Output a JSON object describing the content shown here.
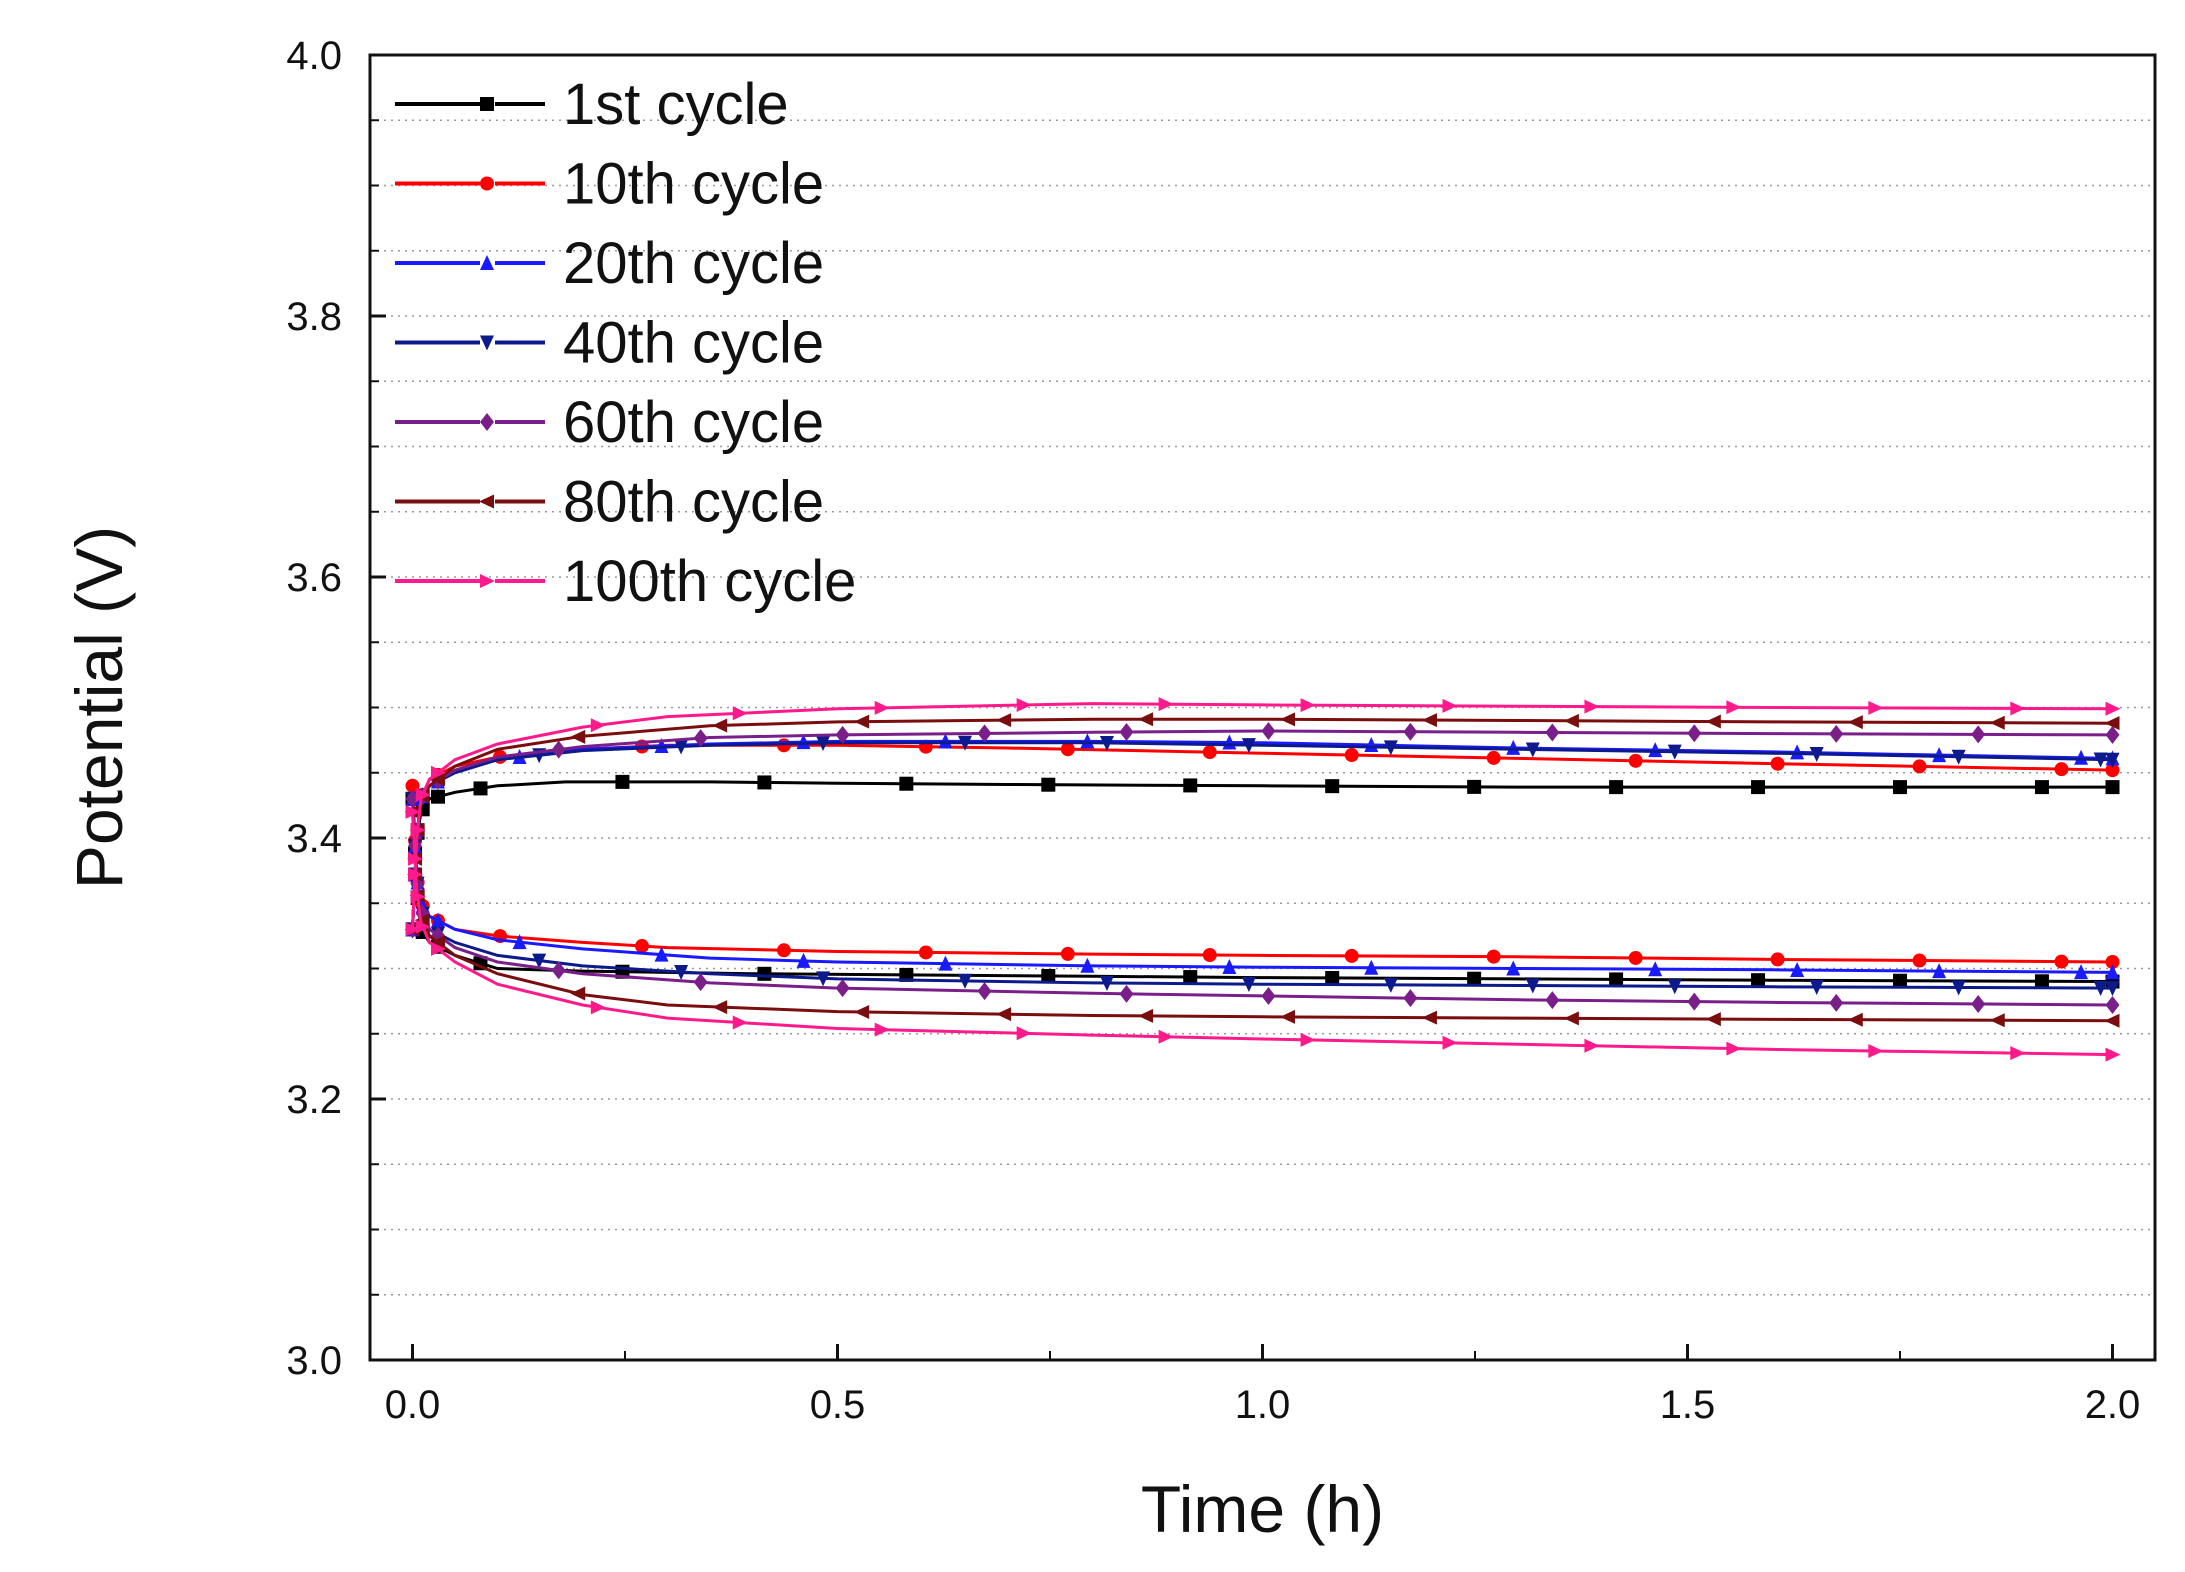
{
  "chart_data": {
    "type": "line",
    "title": "",
    "xlabel": "Time (h)",
    "ylabel": "Potential (V)",
    "xlim": [
      -0.05,
      2.05
    ],
    "ylim": [
      3.0,
      4.0
    ],
    "xticks": [
      "0.0",
      "0.5",
      "1.0",
      "1.5",
      "2.0"
    ],
    "yticks": [
      "3.0",
      "3.2",
      "3.4",
      "3.6",
      "3.8",
      "4.0"
    ],
    "grid": "horizontal-dotted",
    "legend_position": "top-left",
    "series": [
      {
        "name": "1st cycle",
        "color": "#000000",
        "marker": "square",
        "charge": [
          [
            0,
            3.33
          ],
          [
            0.005,
            3.4
          ],
          [
            0.01,
            3.42
          ],
          [
            0.02,
            3.43
          ],
          [
            0.05,
            3.435
          ],
          [
            0.1,
            3.44
          ],
          [
            0.18,
            3.443
          ],
          [
            0.35,
            3.443
          ],
          [
            0.5,
            3.442
          ],
          [
            0.7,
            3.441
          ],
          [
            1.0,
            3.44
          ],
          [
            1.3,
            3.439
          ],
          [
            1.6,
            3.439
          ],
          [
            2.0,
            3.439
          ]
        ],
        "discharge": [
          [
            0,
            3.43
          ],
          [
            0.005,
            3.36
          ],
          [
            0.01,
            3.33
          ],
          [
            0.02,
            3.32
          ],
          [
            0.05,
            3.31
          ],
          [
            0.1,
            3.3
          ],
          [
            0.2,
            3.298
          ],
          [
            0.4,
            3.296
          ],
          [
            0.6,
            3.295
          ],
          [
            0.8,
            3.294
          ],
          [
            1.0,
            3.293
          ],
          [
            1.3,
            3.292
          ],
          [
            1.6,
            3.291
          ],
          [
            2.0,
            3.29
          ]
        ]
      },
      {
        "name": "10th cycle",
        "color": "#ff0000",
        "marker": "circle",
        "charge": [
          [
            0,
            3.33
          ],
          [
            0.005,
            3.4
          ],
          [
            0.01,
            3.43
          ],
          [
            0.02,
            3.445
          ],
          [
            0.05,
            3.455
          ],
          [
            0.1,
            3.462
          ],
          [
            0.2,
            3.468
          ],
          [
            0.3,
            3.471
          ],
          [
            0.5,
            3.471
          ],
          [
            0.7,
            3.469
          ],
          [
            1.0,
            3.465
          ],
          [
            1.3,
            3.461
          ],
          [
            1.6,
            3.457
          ],
          [
            2.0,
            3.452
          ]
        ],
        "discharge": [
          [
            0,
            3.44
          ],
          [
            0.005,
            3.37
          ],
          [
            0.01,
            3.35
          ],
          [
            0.02,
            3.34
          ],
          [
            0.05,
            3.33
          ],
          [
            0.1,
            3.325
          ],
          [
            0.2,
            3.32
          ],
          [
            0.3,
            3.316
          ],
          [
            0.5,
            3.313
          ],
          [
            0.8,
            3.311
          ],
          [
            1.0,
            3.31
          ],
          [
            1.3,
            3.309
          ],
          [
            1.6,
            3.307
          ],
          [
            2.0,
            3.305
          ]
        ]
      },
      {
        "name": "20th cycle",
        "color": "#1a1aff",
        "marker": "triangle-up",
        "charge": [
          [
            0,
            3.33
          ],
          [
            0.005,
            3.4
          ],
          [
            0.01,
            3.43
          ],
          [
            0.02,
            3.44
          ],
          [
            0.05,
            3.45
          ],
          [
            0.1,
            3.46
          ],
          [
            0.2,
            3.468
          ],
          [
            0.35,
            3.472
          ],
          [
            0.5,
            3.474
          ],
          [
            0.8,
            3.474
          ],
          [
            1.0,
            3.473
          ],
          [
            1.3,
            3.469
          ],
          [
            1.6,
            3.466
          ],
          [
            2.0,
            3.461
          ]
        ],
        "discharge": [
          [
            0,
            3.43
          ],
          [
            0.005,
            3.37
          ],
          [
            0.01,
            3.35
          ],
          [
            0.02,
            3.34
          ],
          [
            0.05,
            3.33
          ],
          [
            0.1,
            3.322
          ],
          [
            0.2,
            3.315
          ],
          [
            0.35,
            3.308
          ],
          [
            0.5,
            3.305
          ],
          [
            0.8,
            3.302
          ],
          [
            1.0,
            3.301
          ],
          [
            1.3,
            3.3
          ],
          [
            1.6,
            3.299
          ],
          [
            2.0,
            3.297
          ]
        ]
      },
      {
        "name": "40th cycle",
        "color": "#0d1a8c",
        "marker": "triangle-down",
        "charge": [
          [
            0,
            3.33
          ],
          [
            0.005,
            3.4
          ],
          [
            0.01,
            3.43
          ],
          [
            0.02,
            3.44
          ],
          [
            0.05,
            3.45
          ],
          [
            0.1,
            3.46
          ],
          [
            0.2,
            3.467
          ],
          [
            0.35,
            3.471
          ],
          [
            0.5,
            3.473
          ],
          [
            0.8,
            3.473
          ],
          [
            1.0,
            3.471
          ],
          [
            1.3,
            3.468
          ],
          [
            1.6,
            3.465
          ],
          [
            2.0,
            3.46
          ]
        ],
        "discharge": [
          [
            0,
            3.43
          ],
          [
            0.005,
            3.37
          ],
          [
            0.01,
            3.345
          ],
          [
            0.02,
            3.33
          ],
          [
            0.05,
            3.32
          ],
          [
            0.1,
            3.31
          ],
          [
            0.2,
            3.302
          ],
          [
            0.35,
            3.296
          ],
          [
            0.5,
            3.292
          ],
          [
            0.8,
            3.289
          ],
          [
            1.0,
            3.288
          ],
          [
            1.3,
            3.287
          ],
          [
            1.6,
            3.286
          ],
          [
            2.0,
            3.285
          ]
        ]
      },
      {
        "name": "60th cycle",
        "color": "#7a1f8a",
        "marker": "diamond",
        "charge": [
          [
            0,
            3.33
          ],
          [
            0.005,
            3.4
          ],
          [
            0.01,
            3.43
          ],
          [
            0.02,
            3.44
          ],
          [
            0.05,
            3.452
          ],
          [
            0.1,
            3.462
          ],
          [
            0.2,
            3.47
          ],
          [
            0.35,
            3.477
          ],
          [
            0.5,
            3.479
          ],
          [
            0.8,
            3.481
          ],
          [
            1.0,
            3.482
          ],
          [
            1.3,
            3.481
          ],
          [
            1.6,
            3.48
          ],
          [
            2.0,
            3.479
          ]
        ],
        "discharge": [
          [
            0,
            3.43
          ],
          [
            0.005,
            3.37
          ],
          [
            0.01,
            3.345
          ],
          [
            0.02,
            3.33
          ],
          [
            0.05,
            3.316
          ],
          [
            0.1,
            3.305
          ],
          [
            0.2,
            3.296
          ],
          [
            0.35,
            3.289
          ],
          [
            0.5,
            3.285
          ],
          [
            0.8,
            3.281
          ],
          [
            1.0,
            3.279
          ],
          [
            1.3,
            3.276
          ],
          [
            1.6,
            3.274
          ],
          [
            2.0,
            3.272
          ]
        ]
      },
      {
        "name": "80th cycle",
        "color": "#7a0d0d",
        "marker": "triangle-left",
        "charge": [
          [
            0,
            3.33
          ],
          [
            0.005,
            3.4
          ],
          [
            0.01,
            3.43
          ],
          [
            0.02,
            3.44
          ],
          [
            0.05,
            3.455
          ],
          [
            0.1,
            3.468
          ],
          [
            0.2,
            3.478
          ],
          [
            0.35,
            3.486
          ],
          [
            0.5,
            3.489
          ],
          [
            0.8,
            3.491
          ],
          [
            1.0,
            3.491
          ],
          [
            1.3,
            3.49
          ],
          [
            1.6,
            3.489
          ],
          [
            2.0,
            3.488
          ]
        ],
        "discharge": [
          [
            0,
            3.42
          ],
          [
            0.005,
            3.36
          ],
          [
            0.01,
            3.34
          ],
          [
            0.02,
            3.325
          ],
          [
            0.05,
            3.31
          ],
          [
            0.1,
            3.296
          ],
          [
            0.2,
            3.28
          ],
          [
            0.3,
            3.272
          ],
          [
            0.5,
            3.267
          ],
          [
            0.8,
            3.264
          ],
          [
            1.0,
            3.263
          ],
          [
            1.3,
            3.262
          ],
          [
            1.6,
            3.261
          ],
          [
            2.0,
            3.26
          ]
        ]
      },
      {
        "name": "100th cycle",
        "color": "#ff1a8c",
        "marker": "triangle-right",
        "charge": [
          [
            0,
            3.33
          ],
          [
            0.005,
            3.4
          ],
          [
            0.01,
            3.43
          ],
          [
            0.02,
            3.445
          ],
          [
            0.05,
            3.46
          ],
          [
            0.1,
            3.472
          ],
          [
            0.2,
            3.485
          ],
          [
            0.3,
            3.493
          ],
          [
            0.5,
            3.499
          ],
          [
            0.8,
            3.503
          ],
          [
            1.0,
            3.502
          ],
          [
            1.3,
            3.501
          ],
          [
            1.6,
            3.5
          ],
          [
            2.0,
            3.499
          ]
        ],
        "discharge": [
          [
            0,
            3.42
          ],
          [
            0.005,
            3.36
          ],
          [
            0.01,
            3.335
          ],
          [
            0.02,
            3.32
          ],
          [
            0.05,
            3.305
          ],
          [
            0.1,
            3.288
          ],
          [
            0.2,
            3.272
          ],
          [
            0.3,
            3.262
          ],
          [
            0.5,
            3.254
          ],
          [
            0.8,
            3.249
          ],
          [
            1.0,
            3.246
          ],
          [
            1.3,
            3.242
          ],
          [
            1.6,
            3.238
          ],
          [
            2.0,
            3.234
          ]
        ]
      }
    ]
  }
}
